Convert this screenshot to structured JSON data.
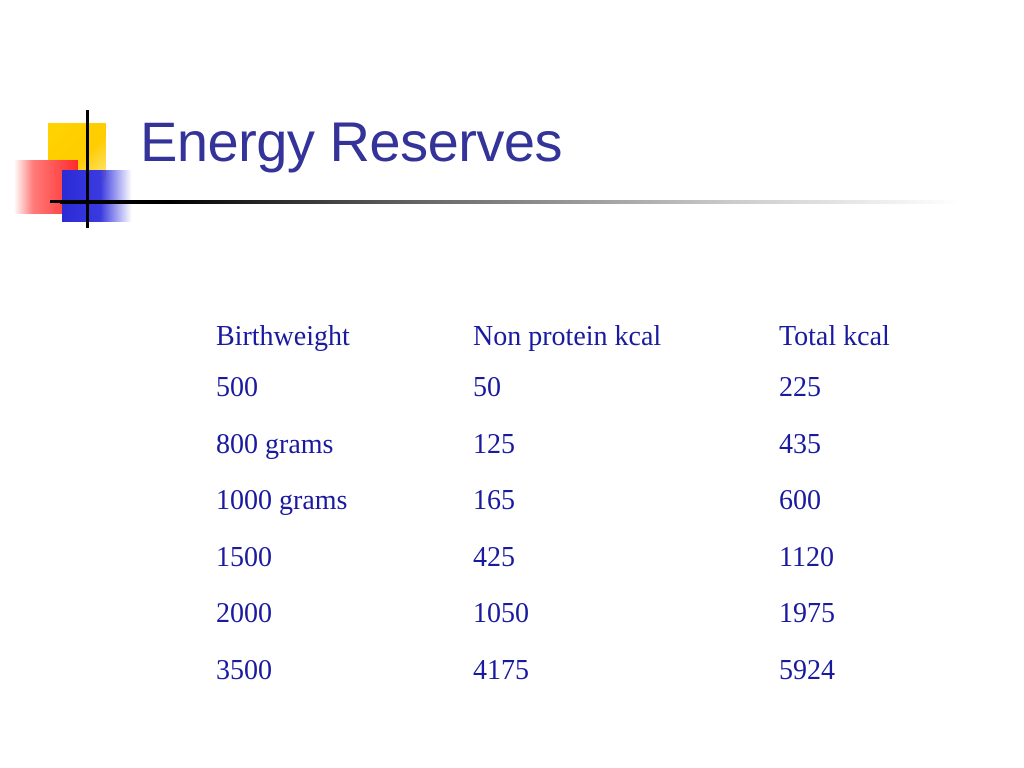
{
  "slide": {
    "title": "Energy Reserves"
  },
  "table": {
    "headers": [
      "Birthweight",
      "Non protein kcal",
      "Total kcal"
    ],
    "rows": [
      [
        "500",
        "50",
        "225"
      ],
      [
        "800 grams",
        "125",
        "435"
      ],
      [
        "1000 grams",
        "165",
        "600"
      ],
      [
        "1500",
        "425",
        "1120"
      ],
      [
        "2000",
        "1050",
        "1975"
      ],
      [
        "3500",
        "4175",
        "5924"
      ]
    ]
  },
  "colors": {
    "title": "#333399",
    "table_text": "#1a1aa0",
    "accent_yellow": "#ffcc00",
    "accent_red": "#ff2b2b",
    "accent_blue": "#2b2bd6"
  }
}
